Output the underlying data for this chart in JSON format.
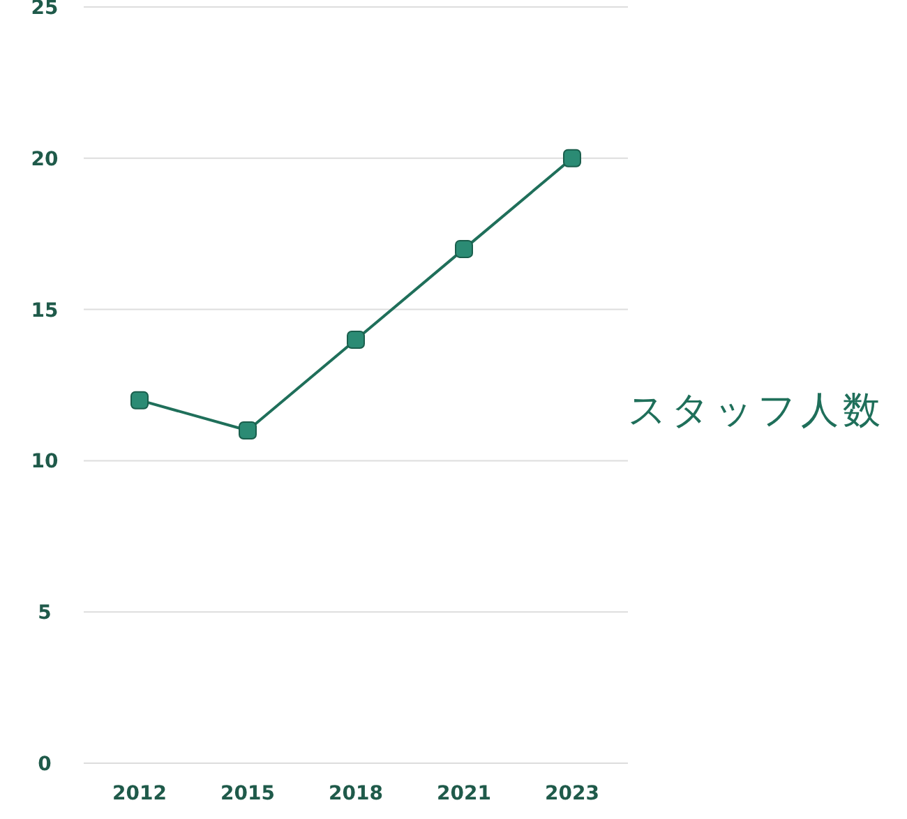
{
  "chart_data": {
    "type": "line",
    "categories": [
      "2012",
      "2015",
      "2018",
      "2021",
      "2023"
    ],
    "series": [
      {
        "name": "スタッフ人数",
        "color": "#1f6f5a",
        "values": [
          12,
          11,
          14,
          17,
          20
        ]
      }
    ],
    "ylim": [
      0,
      25
    ],
    "yticks": [
      0,
      5,
      10,
      15,
      20,
      25
    ],
    "grid": "y",
    "legend": "right",
    "marker": "square",
    "line_style": "solid"
  }
}
